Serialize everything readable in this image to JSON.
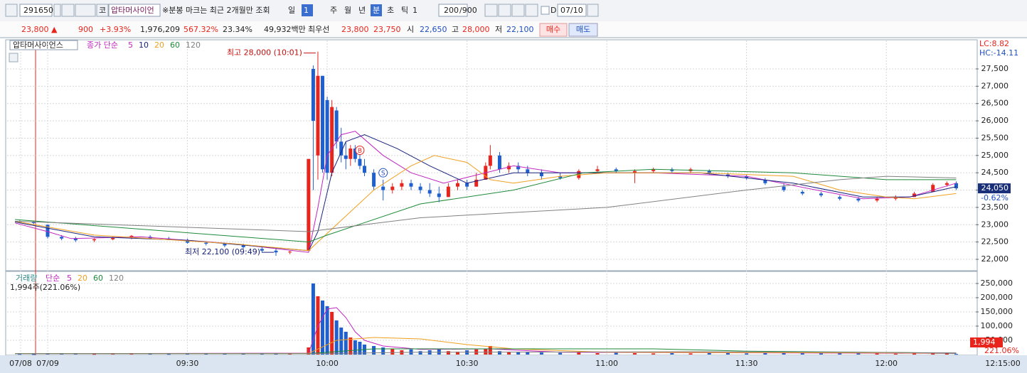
{
  "toolbar": {
    "code": "291650",
    "market": "코",
    "name": "압타머사이언",
    "notice": "※분봉 마크는 최근 2개월만 조회",
    "periods": [
      "일",
      "1",
      "주",
      "월",
      "년",
      "분",
      "초",
      "틱",
      "1"
    ],
    "count": "200",
    "max": "/900",
    "date_flag": "D",
    "date": "07/10"
  },
  "quote": {
    "price": "23,800",
    "arrow": "▲",
    "change": "900",
    "rate": "+3.93%",
    "volume": "1,976,209",
    "volume_rate": "567.32%",
    "turnover": "23.34%",
    "amount": "49,932백만",
    "best_label": "최우선",
    "ask": "23,800",
    "bid": "23,750",
    "open_label": "시",
    "open": "22,650",
    "high_label": "고",
    "high": "28,000",
    "low_label": "저",
    "low": "22,100",
    "buy": "매수",
    "sell": "매도"
  },
  "chart_data": [
    {
      "type": "candlestick",
      "title": "압타머사이언스",
      "legend_title": "종가 단순",
      "lc": "LC:8.82",
      "hc": "HC:-14.11",
      "up_color": "#e8251c",
      "down_color": "#1f5fce",
      "x": [
        -6,
        -3,
        0,
        3,
        6,
        10,
        14,
        18,
        22,
        26,
        30,
        34,
        38,
        42,
        46,
        49,
        52,
        56,
        57,
        58,
        59,
        60,
        61,
        62,
        63,
        64,
        65,
        66,
        67,
        68,
        70,
        72,
        74,
        76,
        78,
        80,
        82,
        84,
        86,
        88,
        90,
        92,
        94,
        95,
        97,
        99,
        101,
        103,
        106,
        110,
        114,
        118,
        122,
        126,
        130,
        134,
        138,
        142,
        146,
        150,
        154,
        158,
        162,
        166,
        170,
        174,
        178,
        182,
        186,
        190,
        193,
        195
      ],
      "open": [
        23100,
        23080,
        23000,
        22650,
        22600,
        22550,
        22580,
        22620,
        22650,
        22600,
        22560,
        22480,
        22450,
        22400,
        22300,
        22250,
        22200,
        22250,
        27500,
        25000,
        27300,
        26600,
        24500,
        26300,
        25400,
        25000,
        24900,
        25200,
        24900,
        24700,
        24500,
        24100,
        24000,
        24100,
        24200,
        24100,
        24000,
        23900,
        23800,
        24100,
        24200,
        24100,
        24300,
        24700,
        25000,
        24600,
        24700,
        24600,
        24500,
        24400,
        24350,
        24550,
        24600,
        24500,
        24550,
        24600,
        24550,
        24550,
        24450,
        24400,
        24300,
        24100,
        23950,
        23900,
        23800,
        23750,
        23700,
        23750,
        23800,
        23950,
        24150,
        24200
      ],
      "high": [
        23120,
        23100,
        23000,
        22700,
        22650,
        22600,
        22650,
        22700,
        22700,
        22650,
        22600,
        22520,
        22480,
        22450,
        22350,
        22300,
        22250,
        24900,
        27600,
        28000,
        27300,
        26700,
        26600,
        26400,
        25800,
        25400,
        25300,
        25300,
        25100,
        24900,
        24600,
        24300,
        24200,
        24300,
        24300,
        24200,
        24200,
        24100,
        24200,
        24300,
        24300,
        24500,
        24800,
        25300,
        25100,
        24800,
        24800,
        24700,
        24600,
        24500,
        24600,
        24700,
        24650,
        24600,
        24650,
        24650,
        24650,
        24600,
        24500,
        24450,
        24350,
        24200,
        24000,
        23950,
        23850,
        23800,
        23800,
        23850,
        23950,
        24200,
        24250,
        24250
      ],
      "low": [
        23050,
        23000,
        22600,
        22550,
        22500,
        22500,
        22550,
        22580,
        22580,
        22550,
        22450,
        22400,
        22350,
        22300,
        22200,
        22100,
        22150,
        22250,
        24000,
        24300,
        24500,
        24300,
        24400,
        25200,
        24800,
        24600,
        24700,
        24800,
        24600,
        24400,
        24000,
        23700,
        23900,
        24000,
        24000,
        23900,
        23800,
        23650,
        23800,
        24000,
        24000,
        24100,
        24300,
        24600,
        24500,
        24500,
        24500,
        24400,
        24300,
        24300,
        24300,
        24500,
        24500,
        24200,
        24500,
        24500,
        24500,
        24450,
        24350,
        24300,
        24150,
        23950,
        23850,
        23800,
        23700,
        23650,
        23650,
        23700,
        23800,
        23950,
        24100,
        24000
      ],
      "close": [
        23080,
        23050,
        22650,
        22600,
        22550,
        22580,
        22620,
        22680,
        22600,
        22560,
        22480,
        22450,
        22400,
        22350,
        22250,
        22200,
        22220,
        24900,
        26000,
        27300,
        24600,
        24500,
        26400,
        25400,
        25000,
        24900,
        25200,
        24900,
        24700,
        24500,
        24100,
        24000,
        24100,
        24200,
        24100,
        24000,
        23900,
        23800,
        24100,
        24200,
        24100,
        24300,
        24700,
        25000,
        24600,
        24700,
        24600,
        24500,
        24400,
        24350,
        24550,
        24600,
        24550,
        24550,
        24600,
        24550,
        24600,
        24500,
        24400,
        24350,
        24200,
        24000,
        23900,
        23850,
        23750,
        23700,
        23750,
        23800,
        23900,
        24150,
        24200,
        24050
      ],
      "series": [
        {
          "name": "5",
          "color": "#c026c0",
          "x": [
            -7,
            0,
            5,
            20,
            40,
            56,
            58,
            60,
            63,
            66,
            72,
            78,
            85,
            100,
            110,
            130,
            150,
            165,
            175,
            185,
            195
          ],
          "values": [
            23050,
            22800,
            22600,
            22650,
            22450,
            22200,
            23500,
            25000,
            25600,
            25700,
            25000,
            24500,
            24200,
            24700,
            24500,
            24500,
            24400,
            24000,
            23750,
            23800,
            24200
          ]
        },
        {
          "name": "10",
          "color": "#1a237e",
          "x": [
            -7,
            0,
            10,
            30,
            56,
            58,
            61,
            64,
            68,
            75,
            82,
            90,
            100,
            115,
            140,
            160,
            175,
            185,
            195
          ],
          "values": [
            23080,
            22900,
            22650,
            22550,
            22250,
            22800,
            24500,
            25400,
            25600,
            25200,
            24700,
            24200,
            24500,
            24500,
            24500,
            24200,
            23800,
            23800,
            24100
          ]
        },
        {
          "name": "20",
          "color": "#f0a020",
          "x": [
            -7,
            10,
            40,
            56,
            62,
            70,
            78,
            83,
            90,
            95,
            100,
            110,
            120,
            140,
            160,
            170,
            180,
            186,
            195
          ],
          "values": [
            23100,
            22700,
            22450,
            22250,
            23000,
            24000,
            24700,
            25000,
            24800,
            24300,
            24200,
            24400,
            24500,
            24500,
            24400,
            24000,
            23800,
            23750,
            23900
          ]
        },
        {
          "name": "60",
          "color": "#1e8a3a",
          "x": [
            -7,
            56,
            60,
            80,
            100,
            115,
            130,
            160,
            180,
            195
          ],
          "values": [
            23150,
            22500,
            22700,
            23600,
            24000,
            24500,
            24600,
            24500,
            24300,
            24300
          ]
        },
        {
          "name": "120",
          "color": "#808080",
          "x": [
            -7,
            56,
            80,
            120,
            150,
            170,
            180,
            195
          ],
          "values": [
            23100,
            22800,
            23200,
            23500,
            24000,
            24300,
            24400,
            24350
          ]
        }
      ],
      "annotations": [
        {
          "text": "최고 28,000 (10:01)",
          "x": 58,
          "y": 28000
        },
        {
          "text": "최저 22,100 (09:49)",
          "x": 49,
          "y": 22100
        }
      ],
      "signals": [
        {
          "text": "B",
          "x": 67,
          "y": 25150
        },
        {
          "text": "S",
          "x": 72,
          "y": 24500
        }
      ],
      "last_label": {
        "value": 24050,
        "label": "24,050"
      },
      "last_rate": "-0.62%",
      "xlim": [
        -8.7,
        199.2
      ],
      "ylim": [
        21692,
        28321
      ],
      "yticks": [
        {
          "value": 22000,
          "label": "22,000"
        },
        {
          "value": 22500,
          "label": "22,500"
        },
        {
          "value": 23000,
          "label": "23,000"
        },
        {
          "value": 23500,
          "label": "23,500"
        },
        {
          "value": 24000,
          "label": "24,000"
        },
        {
          "value": 24500,
          "label": "24,500"
        },
        {
          "value": 25000,
          "label": "25,000"
        },
        {
          "value": 25500,
          "label": "25,500"
        },
        {
          "value": 26000,
          "label": "26,000"
        },
        {
          "value": 26500,
          "label": "26,500"
        },
        {
          "value": 27000,
          "label": "27,000"
        },
        {
          "value": 27500,
          "label": "27,500"
        }
      ]
    },
    {
      "type": "bar",
      "title": "거래량",
      "legend_title": "단순",
      "info": "1,994주(221.06%)",
      "values": [
        2000,
        1500,
        4000,
        3000,
        2500,
        2000,
        3000,
        4000,
        2500,
        2000,
        3000,
        3500,
        2500,
        3000,
        4000,
        5000,
        3000,
        25000,
        250000,
        205000,
        190000,
        170000,
        150000,
        120000,
        95000,
        80000,
        60000,
        50000,
        45000,
        35000,
        30000,
        25000,
        20000,
        15000,
        18000,
        12000,
        15000,
        20000,
        12000,
        10000,
        15000,
        18000,
        20000,
        30000,
        12000,
        10000,
        8000,
        10000,
        7000,
        6000,
        8000,
        5000,
        6000,
        5000,
        4000,
        5000,
        4000,
        6000,
        5000,
        4000,
        6000,
        8000,
        5000,
        4000,
        5000,
        6000,
        4000,
        3000,
        5000,
        6000,
        4000,
        1994
      ],
      "series": [
        {
          "name": "5",
          "color": "#c026c0",
          "x": [
            -7,
            56,
            58,
            60,
            62,
            64,
            66,
            68,
            72,
            80,
            95,
            110,
            195
          ],
          "values": [
            3000,
            5000,
            100000,
            160000,
            165000,
            130000,
            80000,
            50000,
            30000,
            18000,
            20000,
            8000,
            4000
          ]
        },
        {
          "name": "20",
          "color": "#f0a020",
          "x": [
            -7,
            56,
            62,
            70,
            80,
            90,
            100,
            120,
            195
          ],
          "values": [
            3000,
            4000,
            50000,
            60000,
            55000,
            35000,
            20000,
            8000,
            5000
          ]
        },
        {
          "name": "60",
          "color": "#1e8a3a",
          "x": [
            -7,
            56,
            70,
            100,
            130,
            150,
            195
          ],
          "values": [
            3000,
            3000,
            20000,
            20000,
            20000,
            12000,
            5000
          ]
        },
        {
          "name": "120",
          "color": "#808080",
          "x": [
            -7,
            56,
            80,
            140,
            170,
            195
          ],
          "values": [
            2500,
            3000,
            8000,
            10000,
            8000,
            6000
          ]
        }
      ],
      "last_label": {
        "value": 1994,
        "label": "1,994"
      },
      "last_rate": "221.06%",
      "cursor_time": "12:15:00",
      "xlim": [
        -8.7,
        199.2
      ],
      "ylim": [
        0,
        262500
      ],
      "yticks": [
        {
          "value": 50000,
          "label": "50,000"
        },
        {
          "value": 100000,
          "label": "100,000"
        },
        {
          "value": 150000,
          "label": "150,000"
        },
        {
          "value": 200000,
          "label": "200,000"
        },
        {
          "value": 250000,
          "label": "250,000"
        }
      ],
      "xticks": [
        {
          "value": -5.8,
          "label": "07/08"
        },
        {
          "value": 0,
          "label": "07/09"
        },
        {
          "value": 30,
          "label": "09:30"
        },
        {
          "value": 60,
          "label": "10:00"
        },
        {
          "value": 90,
          "label": "10:30"
        },
        {
          "value": 120,
          "label": "11:00"
        },
        {
          "value": 150,
          "label": "11:30"
        },
        {
          "value": 180,
          "label": "12:00"
        }
      ]
    }
  ]
}
